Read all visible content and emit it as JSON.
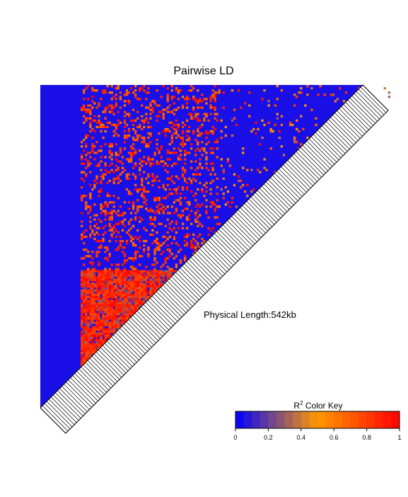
{
  "chart_data": {
    "type": "heatmap",
    "title": "Pairwise LD",
    "annotation": "Physical Length:542kb",
    "color_key": {
      "label_base": "R",
      "label_sup": "2",
      "label_rest": " Color Key",
      "range": [
        0,
        1
      ],
      "ticks": [
        "0",
        "0.2",
        "0.4",
        "0.6",
        "0.8",
        "1"
      ],
      "colors": {
        "low": "#0000ff",
        "mid": "#ff9900",
        "high": "#ff0000"
      }
    },
    "blocks": [
      {
        "from": 0,
        "to": 0.57,
        "r2": 0.05
      },
      {
        "from": 0.57,
        "to": 1,
        "r2": 0.85
      }
    ],
    "cross_block_r2": 0.15,
    "n_snps": 150
  }
}
